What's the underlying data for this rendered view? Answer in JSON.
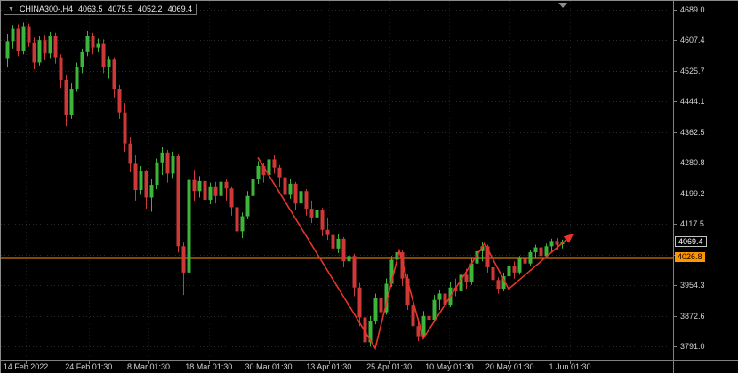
{
  "header": {
    "icon": "▼",
    "symbol_period": "CHINA300-,H4",
    "open": "4063.5",
    "high": "4075.5",
    "low": "4052.2",
    "close": "4069.4"
  },
  "price_axis": {
    "grid_labels": [
      "4689.0",
      "4607.4",
      "4525.7",
      "4444.1",
      "4362.5",
      "4280.8",
      "4199.2",
      "4117.5",
      "4035.9",
      "3954.3",
      "3872.6",
      "3791.0"
    ],
    "current_price_label": "4069.4",
    "orange_level_label": "4026.8"
  },
  "time_axis": {
    "labels": [
      {
        "text": "14 Feb 2022",
        "bar": 3.5
      },
      {
        "text": "24 Feb 01:30",
        "bar": 15.3
      },
      {
        "text": "8 Mar 01:30",
        "bar": 26.5
      },
      {
        "text": "18 Mar 01:30",
        "bar": 37.8
      },
      {
        "text": "30 Mar 01:30",
        "bar": 49
      },
      {
        "text": "13 Apr 01:30",
        "bar": 60.3
      },
      {
        "text": "25 Apr 01:30",
        "bar": 71.6
      },
      {
        "text": "10 May 01:30",
        "bar": 82.9
      },
      {
        "text": "20 May 01:30",
        "bar": 94.2
      },
      {
        "text": "1 Jun 01:30",
        "bar": 105.5
      }
    ]
  },
  "chart_data": {
    "type": "candlestick",
    "title": "CHINA300-,H4",
    "symbol": "CHINA300-",
    "timeframe": "H4",
    "ylim": [
      3791.0,
      4689.0
    ],
    "grid_prices": [
      4689.0,
      4607.4,
      4525.7,
      4444.1,
      4362.5,
      4280.8,
      4199.2,
      4117.5,
      4035.9,
      3954.3,
      3872.6,
      3791.0
    ],
    "x_axis_dates": [
      "14 Feb 2022",
      "24 Feb 01:30",
      "8 Mar 01:30",
      "18 Mar 01:30",
      "30 Mar 01:30",
      "13 Apr 01:30",
      "25 Apr 01:30",
      "10 May 01:30",
      "20 May 01:30",
      "1 Jun 01:30"
    ],
    "last_bar_ohlc": {
      "open": 4063.5,
      "high": 4075.5,
      "low": 4052.2,
      "close": 4069.4
    },
    "candles_ohlc": [
      [
        4560,
        4625,
        4535,
        4605
      ],
      [
        4605,
        4648,
        4585,
        4638
      ],
      [
        4638,
        4650,
        4565,
        4580
      ],
      [
        4580,
        4655,
        4570,
        4645
      ],
      [
        4645,
        4652,
        4590,
        4602
      ],
      [
        4602,
        4615,
        4530,
        4548
      ],
      [
        4548,
        4618,
        4540,
        4608
      ],
      [
        4608,
        4622,
        4556,
        4572
      ],
      [
        4572,
        4630,
        4560,
        4618
      ],
      [
        4618,
        4628,
        4545,
        4562
      ],
      [
        4562,
        4570,
        4480,
        4502
      ],
      [
        4502,
        4515,
        4378,
        4408
      ],
      [
        4408,
        4492,
        4398,
        4478
      ],
      [
        4478,
        4548,
        4470,
        4536
      ],
      [
        4536,
        4585,
        4520,
        4578
      ],
      [
        4578,
        4632,
        4565,
        4620
      ],
      [
        4620,
        4628,
        4570,
        4588
      ],
      [
        4588,
        4612,
        4575,
        4600
      ],
      [
        4600,
        4610,
        4520,
        4535
      ],
      [
        4535,
        4565,
        4505,
        4558
      ],
      [
        4558,
        4562,
        4455,
        4478
      ],
      [
        4478,
        4488,
        4398,
        4415
      ],
      [
        4415,
        4440,
        4310,
        4332
      ],
      [
        4332,
        4350,
        4255,
        4278
      ],
      [
        4278,
        4300,
        4180,
        4208
      ],
      [
        4208,
        4272,
        4195,
        4258
      ],
      [
        4258,
        4262,
        4158,
        4188
      ],
      [
        4188,
        4238,
        4150,
        4222
      ],
      [
        4222,
        4292,
        4210,
        4282
      ],
      [
        4282,
        4322,
        4248,
        4308
      ],
      [
        4308,
        4315,
        4228,
        4252
      ],
      [
        4252,
        4310,
        4240,
        4298
      ],
      [
        4298,
        4305,
        4042,
        4058
      ],
      [
        4058,
        4068,
        3928,
        3988
      ],
      [
        3988,
        4248,
        3965,
        4235
      ],
      [
        4235,
        4262,
        4180,
        4205
      ],
      [
        4205,
        4245,
        4188,
        4232
      ],
      [
        4232,
        4240,
        4165,
        4182
      ],
      [
        4182,
        4228,
        4170,
        4218
      ],
      [
        4218,
        4230,
        4172,
        4192
      ],
      [
        4192,
        4242,
        4185,
        4230
      ],
      [
        4230,
        4238,
        4180,
        4212
      ],
      [
        4212,
        4218,
        4140,
        4162
      ],
      [
        4162,
        4170,
        4062,
        4098
      ],
      [
        4098,
        4148,
        4080,
        4138
      ],
      [
        4138,
        4205,
        4130,
        4192
      ],
      [
        4192,
        4248,
        4185,
        4238
      ],
      [
        4238,
        4285,
        4225,
        4272
      ],
      [
        4272,
        4280,
        4228,
        4248
      ],
      [
        4248,
        4298,
        4240,
        4290
      ],
      [
        4290,
        4302,
        4252,
        4268
      ],
      [
        4268,
        4275,
        4215,
        4242
      ],
      [
        4242,
        4252,
        4175,
        4195
      ],
      [
        4195,
        4238,
        4185,
        4225
      ],
      [
        4225,
        4230,
        4155,
        4172
      ],
      [
        4172,
        4215,
        4160,
        4205
      ],
      [
        4205,
        4210,
        4140,
        4158
      ],
      [
        4158,
        4180,
        4120,
        4135
      ],
      [
        4135,
        4168,
        4118,
        4155
      ],
      [
        4155,
        4160,
        4085,
        4102
      ],
      [
        4102,
        4135,
        4075,
        4088
      ],
      [
        4088,
        4112,
        4035,
        4052
      ],
      [
        4052,
        4090,
        4040,
        4078
      ],
      [
        4078,
        4082,
        4002,
        4018
      ],
      [
        4018,
        4048,
        3992,
        4032
      ],
      [
        4032,
        4038,
        3925,
        3948
      ],
      [
        3948,
        3960,
        3845,
        3868
      ],
      [
        3868,
        3880,
        3784,
        3802
      ],
      [
        3802,
        3872,
        3790,
        3858
      ],
      [
        3858,
        3932,
        3850,
        3920
      ],
      [
        3920,
        3938,
        3865,
        3882
      ],
      [
        3882,
        3972,
        3875,
        3958
      ],
      [
        3958,
        4032,
        3950,
        4022
      ],
      [
        4022,
        4058,
        3985,
        4042
      ],
      [
        4042,
        4048,
        3952,
        3972
      ],
      [
        3972,
        3985,
        3888,
        3902
      ],
      [
        3902,
        3912,
        3825,
        3845
      ],
      [
        3845,
        3865,
        3805,
        3818
      ],
      [
        3818,
        3885,
        3812,
        3872
      ],
      [
        3872,
        3895,
        3848,
        3862
      ],
      [
        3862,
        3928,
        3855,
        3915
      ],
      [
        3915,
        3942,
        3888,
        3932
      ],
      [
        3932,
        3940,
        3885,
        3902
      ],
      [
        3902,
        3962,
        3895,
        3948
      ],
      [
        3948,
        3972,
        3925,
        3938
      ],
      [
        3938,
        3992,
        3930,
        3982
      ],
      [
        3982,
        3998,
        3945,
        3962
      ],
      [
        3962,
        4025,
        3955,
        4012
      ],
      [
        4012,
        4052,
        3998,
        4045
      ],
      [
        4045,
        4068,
        4018,
        4058
      ],
      [
        4058,
        4062,
        3988,
        4002
      ],
      [
        4002,
        4012,
        3952,
        3968
      ],
      [
        3968,
        3975,
        3932,
        3945
      ],
      [
        3945,
        3988,
        3938,
        3978
      ],
      [
        3978,
        4012,
        3965,
        4005
      ],
      [
        4005,
        4018,
        3972,
        3988
      ],
      [
        3988,
        4032,
        3982,
        4025
      ],
      [
        4025,
        4038,
        3995,
        4012
      ],
      [
        4012,
        4048,
        4005,
        4042
      ],
      [
        4042,
        4062,
        4028,
        4055
      ],
      [
        4055,
        4058,
        4015,
        4032
      ],
      [
        4032,
        4065,
        4025,
        4058
      ],
      [
        4058,
        4078,
        4042,
        4072
      ],
      [
        4072,
        4080,
        4048,
        4062
      ],
      [
        4063.5,
        4075.5,
        4052.2,
        4069.4
      ]
    ],
    "horizontal_line": {
      "price": 4026.8,
      "color": "#ff9500",
      "label": "4026.8"
    },
    "current_price": {
      "price": 4069.4,
      "label": "4069.4"
    },
    "trendline": {
      "color": "#e8342a",
      "arrowhead": true,
      "points": [
        {
          "bar": 47,
          "price": 4295
        },
        {
          "bar": 69,
          "price": 3786
        },
        {
          "bar": 73.5,
          "price": 4046
        },
        {
          "bar": 78,
          "price": 3812
        },
        {
          "bar": 89.5,
          "price": 4066
        },
        {
          "bar": 94,
          "price": 3944
        },
        {
          "bar": 106,
          "price": 4090
        }
      ]
    },
    "colors": {
      "up": "#3db53d",
      "down": "#cf3838",
      "background": "#000000",
      "grid": "#2a2a2a",
      "grid_vertical": "#1c1c1c",
      "axis_text": "#d4d4d4",
      "axis_line": "#808080",
      "current_price_line": "#b8b8b8"
    }
  }
}
